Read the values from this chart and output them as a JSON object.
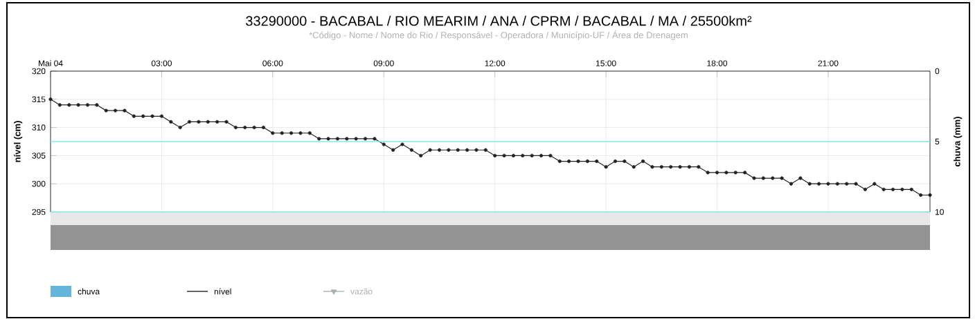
{
  "chart_data": {
    "type": "line",
    "title": "33290000 - BACABAL / RIO MEARIM / ANA / CPRM / BACABAL / MA / 25500km²",
    "subtitle": "*Código - Nome / Nome do Rio / Responsável - Operadora / Município-UF / Área de Drenagem",
    "ylabel": "nível (cm)",
    "y2label": "chuva (mm)",
    "x": [
      0,
      0.25,
      0.5,
      0.75,
      1,
      1.25,
      1.5,
      1.75,
      2,
      2.25,
      2.5,
      2.75,
      3,
      3.25,
      3.5,
      3.75,
      4,
      4.25,
      4.5,
      4.75,
      5,
      5.25,
      5.5,
      5.75,
      6,
      6.25,
      6.5,
      6.75,
      7,
      7.25,
      7.5,
      7.75,
      8,
      8.25,
      8.5,
      8.75,
      9,
      9.25,
      9.5,
      9.75,
      10,
      10.25,
      10.5,
      10.75,
      11,
      11.25,
      11.5,
      11.75,
      12,
      12.25,
      12.5,
      12.75,
      13,
      13.25,
      13.5,
      13.75,
      14,
      14.25,
      14.5,
      14.75,
      15,
      15.25,
      15.5,
      15.75,
      16,
      16.25,
      16.5,
      16.75,
      17,
      17.25,
      17.5,
      17.75,
      18,
      18.25,
      18.5,
      18.75,
      19,
      19.25,
      19.5,
      19.75,
      20,
      20.25,
      20.5,
      20.75,
      21,
      21.25,
      21.5,
      21.75,
      22,
      22.25,
      22.5,
      22.75,
      23,
      23.25,
      23.5,
      23.75
    ],
    "series": [
      {
        "name": "chuva",
        "type": "bar",
        "color": "#63b5dc",
        "values": [
          null,
          null,
          null,
          null,
          null,
          null,
          null,
          null,
          null,
          null,
          null,
          null,
          null,
          null,
          null,
          null,
          null,
          null,
          null,
          null,
          null,
          null,
          null,
          null,
          null,
          null,
          null,
          null,
          null,
          null,
          null,
          null,
          null,
          null,
          null,
          null,
          null,
          null,
          null,
          null,
          null,
          null,
          null,
          null,
          null,
          null,
          null,
          null,
          null,
          null,
          null,
          null,
          null,
          null,
          null,
          null,
          null,
          null,
          null,
          null,
          null,
          null,
          null,
          null,
          null,
          null,
          null,
          null,
          null,
          null,
          null,
          null,
          null,
          null,
          null,
          null,
          null,
          null,
          null,
          null,
          null,
          null,
          null,
          null,
          null,
          null,
          null,
          null,
          null,
          null,
          null,
          null,
          null,
          null,
          null,
          null
        ]
      },
      {
        "name": "nível",
        "color": "#222222",
        "marker": "circle",
        "values": [
          315,
          314,
          314,
          314,
          314,
          314,
          313,
          313,
          313,
          312,
          312,
          312,
          312,
          311,
          310,
          311,
          311,
          311,
          311,
          311,
          310,
          310,
          310,
          310,
          309,
          309,
          309,
          309,
          309,
          308,
          308,
          308,
          308,
          308,
          308,
          308,
          307,
          306,
          307,
          306,
          305,
          306,
          306,
          306,
          306,
          306,
          306,
          306,
          305,
          305,
          305,
          305,
          305,
          305,
          305,
          304,
          304,
          304,
          304,
          304,
          303,
          304,
          304,
          303,
          304,
          303,
          303,
          303,
          303,
          303,
          303,
          302,
          302,
          302,
          302,
          302,
          301,
          301,
          301,
          301,
          300,
          301,
          300,
          300,
          300,
          300,
          300,
          300,
          299,
          300,
          299,
          299,
          299,
          299,
          298,
          298
        ]
      },
      {
        "name": "vazão",
        "type": "line",
        "color": "#a9b0b0",
        "marker": "triangle",
        "values": [
          null,
          null,
          null,
          null,
          null,
          null,
          null,
          null,
          null,
          null,
          null,
          null,
          null,
          null,
          null,
          null,
          null,
          null,
          null,
          null,
          null,
          null,
          null,
          null,
          null,
          null,
          null,
          null,
          null,
          null,
          null,
          null,
          null,
          null,
          null,
          null,
          null,
          null,
          null,
          null,
          null,
          null,
          null,
          null,
          null,
          null,
          null,
          null,
          null,
          null,
          null,
          null,
          null,
          null,
          null,
          null,
          null,
          null,
          null,
          null,
          null,
          null,
          null,
          null,
          null,
          null,
          null,
          null,
          null,
          null,
          null,
          null,
          null,
          null,
          null,
          null,
          null,
          null,
          null,
          null,
          null,
          null,
          null,
          null,
          null,
          null,
          null,
          null,
          null,
          null,
          null,
          null,
          null,
          null,
          null,
          null
        ]
      }
    ],
    "xlim": [
      0,
      23.75
    ],
    "xticks": [
      {
        "value": 0,
        "label": "Mai 04"
      },
      {
        "value": 3,
        "label": "03:00"
      },
      {
        "value": 6,
        "label": "06:00"
      },
      {
        "value": 9,
        "label": "09:00"
      },
      {
        "value": 12,
        "label": "12:00"
      },
      {
        "value": 15,
        "label": "15:00"
      },
      {
        "value": 18,
        "label": "18:00"
      },
      {
        "value": 21,
        "label": "21:00"
      }
    ],
    "ylim": [
      295,
      320
    ],
    "yticks": [
      295,
      300,
      305,
      310,
      315,
      320
    ],
    "y2lim": [
      10,
      0
    ],
    "y2ticks": [
      0,
      5,
      10
    ],
    "ref_lines": [
      {
        "axis": "y2",
        "value": 5,
        "color": "#7fe8f0"
      },
      {
        "axis": "y2",
        "value": 10,
        "color": "#7fe8f0"
      }
    ],
    "grid": true,
    "legend": "bottom left"
  }
}
